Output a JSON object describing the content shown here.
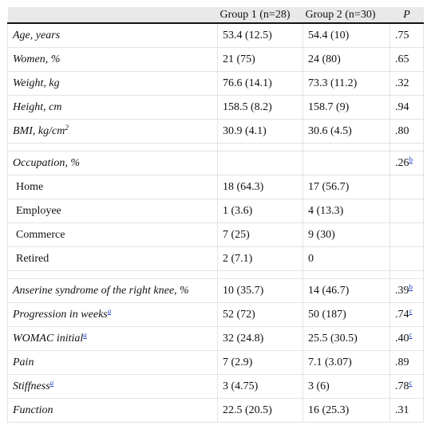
{
  "header": {
    "col0": "",
    "col1": "Group 1 (n=28)",
    "col2": "Group 2 (n=30)",
    "col3": "P"
  },
  "rows": [
    {
      "label": "Age, years",
      "g1": "53.4 (12.5)",
      "g2": "54.4 (10)",
      "p": ".75"
    },
    {
      "label": "Women, %",
      "g1": "21 (75)",
      "g2": "24 (80)",
      "p": ".65"
    },
    {
      "label": "Weight, kg",
      "g1": "76.6 (14.1)",
      "g2": "73.3 (11.2)",
      "p": ".32"
    },
    {
      "label": "Height, cm",
      "g1": "158.5 (8.2)",
      "g2": "158.7 (9)",
      "p": ".94"
    },
    {
      "label": "BMI, kg/cm",
      "label_sup": "2",
      "g1": "30.9 (4.1)",
      "g2": "30.6 (4.5)",
      "p": ".80"
    },
    {
      "spacer": true
    },
    {
      "label": "Occupation, %",
      "g1": "",
      "g2": "",
      "p": ".26",
      "p_ref": "b"
    },
    {
      "label": "Home",
      "sub": true,
      "g1": "18 (64.3)",
      "g2": "17 (56.7)",
      "p": ""
    },
    {
      "label": "Employee",
      "sub": true,
      "g1": "1 (3.6)",
      "g2": "4 (13.3)",
      "p": ""
    },
    {
      "label": "Commerce",
      "sub": true,
      "g1": "7 (25)",
      "g2": "9 (30)",
      "p": ""
    },
    {
      "label": "Retired",
      "sub": true,
      "g1": "2 (7.1)",
      "g2": "0",
      "p": ""
    },
    {
      "spacer": true
    },
    {
      "label": "Anserine syndrome of the right knee, %",
      "g1": "10 (35.7)",
      "g2": "14 (46.7)",
      "p": ".39",
      "p_ref": "b"
    },
    {
      "label": "Progression in weeks",
      "label_ref": "a",
      "g1": "52 (72)",
      "g2": "50 (187)",
      "p": ".74",
      "p_ref": "c"
    },
    {
      "label": "WOMAC initial",
      "label_ref": "a",
      "g1": "32 (24.8)",
      "g2": "25.5 (30.5)",
      "p": ".40",
      "p_ref": "c"
    },
    {
      "label": "Pain",
      "g1": "7 (2.9)",
      "g2": "7.1 (3.07)",
      "p": ".89"
    },
    {
      "label": "Stiffness",
      "label_ref": "a",
      "g1": "3 (4.75)",
      "g2": "3 (6)",
      "p": ".78",
      "p_ref": "c"
    },
    {
      "label": "Function",
      "g1": "22.5 (20.5)",
      "g2": "16 (25.3)",
      "p": ".31"
    }
  ]
}
